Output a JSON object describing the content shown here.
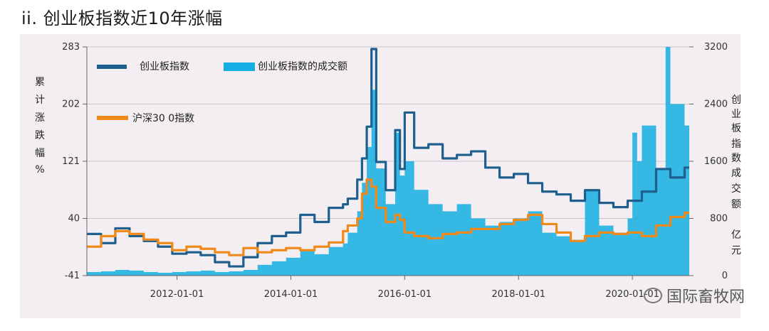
{
  "page": {
    "title": "ii. 创业板指数近10年涨幅"
  },
  "watermark": {
    "text": "国际畜牧网"
  },
  "colors": {
    "background": "#f2eef2",
    "cyb_index": "#1e5f8e",
    "hs300": "#ef8a1a",
    "volume": "#15aee3",
    "grid": "#c8c4c8"
  },
  "chart_data": {
    "type": "line",
    "xlabel": "",
    "x_tick_labels": [
      "2012-01-01",
      "2014-01-01",
      "2016-01-01",
      "2018-01-01",
      "2020-01-01"
    ],
    "x_range": [
      "2010-06-01",
      "2020-12-31"
    ],
    "ylabel_left_chars": [
      "累",
      "计",
      "涨",
      "跌",
      "幅",
      "%"
    ],
    "ylabel_right_chars": [
      "创",
      "业",
      "板",
      "指",
      "数",
      "成",
      "交",
      "额",
      "亿",
      "元"
    ],
    "ylim_left": [
      -41,
      283
    ],
    "yticks_left": [
      "283",
      "202",
      "121",
      "40",
      "-41"
    ],
    "ylim_right": [
      0,
      3200
    ],
    "yticks_right": [
      "3200",
      "2400",
      "1600",
      "800",
      "0"
    ],
    "legend": [
      "创业板指数",
      "创业板指数的成交额",
      "沪深30 0指数"
    ],
    "grid": true,
    "series": [
      {
        "name": "创业板指数",
        "axis": "left",
        "type": "step-line",
        "x": [
          "2010-06",
          "2010-09",
          "2010-12",
          "2011-03",
          "2011-06",
          "2011-09",
          "2011-12",
          "2012-03",
          "2012-06",
          "2012-09",
          "2012-12",
          "2013-03",
          "2013-06",
          "2013-09",
          "2013-12",
          "2014-03",
          "2014-06",
          "2014-09",
          "2014-12",
          "2015-01",
          "2015-03",
          "2015-04",
          "2015-05",
          "2015-06",
          "2015-07",
          "2015-09",
          "2015-11",
          "2015-12",
          "2016-01",
          "2016-03",
          "2016-06",
          "2016-09",
          "2016-12",
          "2017-03",
          "2017-06",
          "2017-09",
          "2017-12",
          "2018-03",
          "2018-06",
          "2018-09",
          "2018-12",
          "2019-03",
          "2019-06",
          "2019-09",
          "2019-12",
          "2020-03",
          "2020-06",
          "2020-09",
          "2020-12"
        ],
        "y": [
          18,
          5,
          26,
          15,
          8,
          0,
          -10,
          -8,
          -12,
          -22,
          -28,
          -15,
          5,
          15,
          20,
          45,
          35,
          55,
          60,
          68,
          95,
          125,
          170,
          280,
          120,
          80,
          165,
          110,
          190,
          140,
          145,
          125,
          130,
          135,
          112,
          98,
          103,
          90,
          78,
          74,
          65,
          80,
          62,
          56,
          65,
          78,
          110,
          98,
          112
        ]
      },
      {
        "name": "沪深30 0指数",
        "axis": "left",
        "type": "step-line",
        "x": [
          "2010-06",
          "2010-09",
          "2010-12",
          "2011-03",
          "2011-06",
          "2011-09",
          "2011-12",
          "2012-03",
          "2012-06",
          "2012-09",
          "2012-12",
          "2013-03",
          "2013-06",
          "2013-09",
          "2013-12",
          "2014-03",
          "2014-06",
          "2014-09",
          "2014-12",
          "2015-01",
          "2015-03",
          "2015-04",
          "2015-05",
          "2015-06",
          "2015-07",
          "2015-09",
          "2015-11",
          "2015-12",
          "2016-01",
          "2016-03",
          "2016-06",
          "2016-09",
          "2016-12",
          "2017-03",
          "2017-06",
          "2017-09",
          "2017-12",
          "2018-03",
          "2018-06",
          "2018-09",
          "2018-12",
          "2019-03",
          "2019-06",
          "2019-09",
          "2019-12",
          "2020-03",
          "2020-06",
          "2020-09",
          "2020-12"
        ],
        "y": [
          0,
          15,
          22,
          18,
          10,
          5,
          -5,
          0,
          -3,
          -8,
          -12,
          -2,
          -8,
          -5,
          -2,
          -5,
          0,
          6,
          22,
          30,
          40,
          75,
          95,
          85,
          55,
          35,
          45,
          38,
          20,
          15,
          12,
          18,
          20,
          25,
          25,
          32,
          38,
          45,
          32,
          20,
          8,
          15,
          20,
          18,
          20,
          15,
          30,
          42,
          48
        ]
      },
      {
        "name": "创业板指数的成交额",
        "axis": "right",
        "type": "area",
        "x": [
          "2010-06",
          "2010-09",
          "2010-12",
          "2011-03",
          "2011-06",
          "2011-09",
          "2011-12",
          "2012-03",
          "2012-06",
          "2012-09",
          "2012-12",
          "2013-03",
          "2013-06",
          "2013-09",
          "2013-12",
          "2014-03",
          "2014-06",
          "2014-09",
          "2014-12",
          "2015-01",
          "2015-03",
          "2015-04",
          "2015-05",
          "2015-06",
          "2015-07",
          "2015-09",
          "2015-11",
          "2015-12",
          "2016-01",
          "2016-03",
          "2016-06",
          "2016-09",
          "2016-12",
          "2017-03",
          "2017-06",
          "2017-09",
          "2017-12",
          "2018-03",
          "2018-06",
          "2018-09",
          "2018-12",
          "2019-03",
          "2019-06",
          "2019-09",
          "2019-12",
          "2020-01",
          "2020-02",
          "2020-03",
          "2020-06",
          "2020-08",
          "2020-09",
          "2020-12"
        ],
        "y": [
          50,
          60,
          80,
          70,
          50,
          40,
          50,
          60,
          70,
          50,
          60,
          80,
          150,
          200,
          250,
          350,
          300,
          400,
          450,
          600,
          900,
          1300,
          1800,
          2600,
          1500,
          1000,
          2000,
          1400,
          1600,
          1200,
          1000,
          900,
          1000,
          800,
          700,
          750,
          800,
          900,
          600,
          550,
          500,
          1200,
          700,
          600,
          800,
          2000,
          1600,
          2100,
          1500,
          3200,
          2400,
          2100
        ]
      }
    ]
  }
}
